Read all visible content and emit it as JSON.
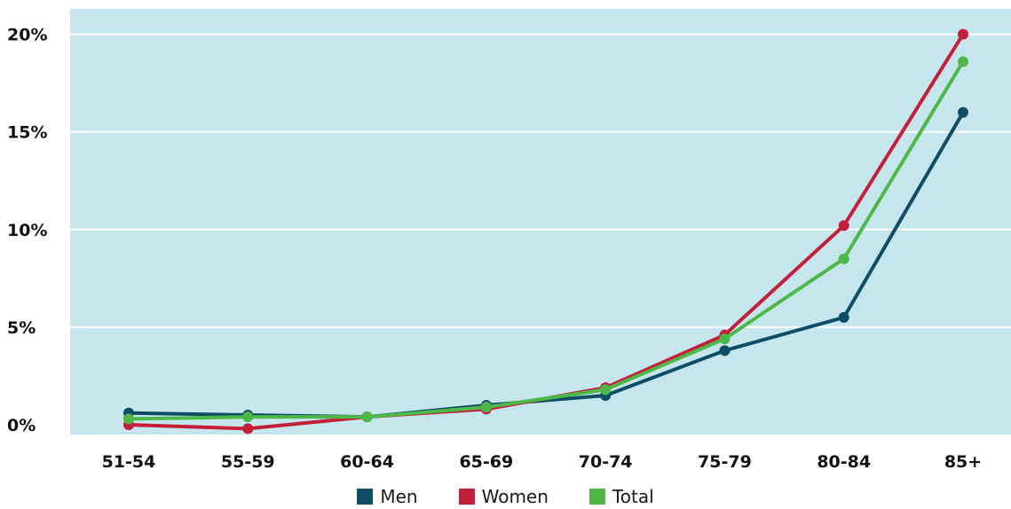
{
  "chart_data": {
    "type": "line",
    "categories": [
      "51-54",
      "55-59",
      "60-64",
      "65-69",
      "70-74",
      "75-79",
      "80-84",
      "85+"
    ],
    "y_ticks": [
      "0%",
      "5%",
      "10%",
      "15%",
      "20%"
    ],
    "y_tick_values": [
      0,
      5,
      10,
      15,
      20
    ],
    "ylim": [
      -0.5,
      21.3
    ],
    "grid": true,
    "legend_position": "bottom",
    "background": "#c6e6ee",
    "series": [
      {
        "name": "Men",
        "color": "#0f4d66",
        "values": [
          0.6,
          0.5,
          0.4,
          1.0,
          1.5,
          3.8,
          5.5,
          16.0
        ]
      },
      {
        "name": "Women",
        "color": "#c41e3a",
        "values": [
          0.0,
          -0.2,
          0.4,
          0.8,
          1.9,
          4.6,
          10.2,
          20.0
        ]
      },
      {
        "name": "Total",
        "color": "#4db848",
        "values": [
          0.3,
          0.4,
          0.4,
          0.9,
          1.8,
          4.4,
          8.5,
          18.6
        ]
      }
    ]
  }
}
